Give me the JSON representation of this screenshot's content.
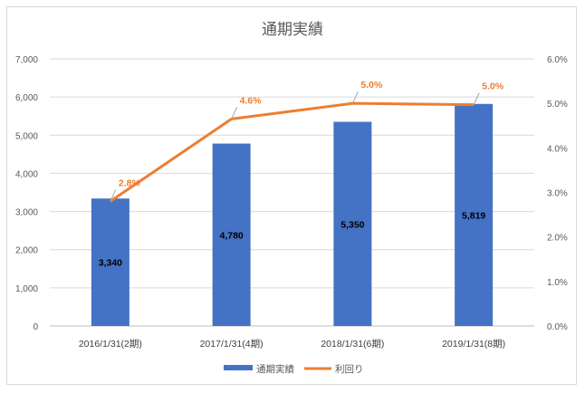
{
  "chart_data": {
    "type": "bar",
    "title": "通期実績",
    "categories": [
      "2016/1/31(2期)",
      "2017/1/31(4期)",
      "2018/1/31(6期)",
      "2019/1/31(8期)"
    ],
    "series": [
      {
        "name": "通期実績",
        "type": "bar",
        "axis": "left",
        "values": [
          3340,
          4780,
          5350,
          5819
        ],
        "labels": [
          "3,340",
          "4,780",
          "5,350",
          "5,819"
        ],
        "color": "#4472c4"
      },
      {
        "name": "利回り",
        "type": "line",
        "axis": "right",
        "values": [
          2.8,
          4.65,
          5.0,
          4.97
        ],
        "labels": [
          "2.8%",
          "4.6%",
          "5.0%",
          "5.0%"
        ],
        "color": "#ed7d31"
      }
    ],
    "y_left": {
      "ylim": [
        0,
        7000
      ],
      "ticks": [
        0,
        1000,
        2000,
        3000,
        4000,
        5000,
        6000,
        7000
      ],
      "tick_labels": [
        "0",
        "1,000",
        "2,000",
        "3,000",
        "4,000",
        "5,000",
        "6,000",
        "7,000"
      ]
    },
    "y_right": {
      "ylim": [
        0,
        6
      ],
      "ticks": [
        0,
        1,
        2,
        3,
        4,
        5,
        6
      ],
      "tick_labels": [
        "0.0%",
        "1.0%",
        "2.0%",
        "3.0%",
        "4.0%",
        "5.0%",
        "6.0%"
      ]
    },
    "grid": true,
    "legend": "bottom",
    "gridColor": "#d9d9d9",
    "axisTextColor": "#595959"
  }
}
